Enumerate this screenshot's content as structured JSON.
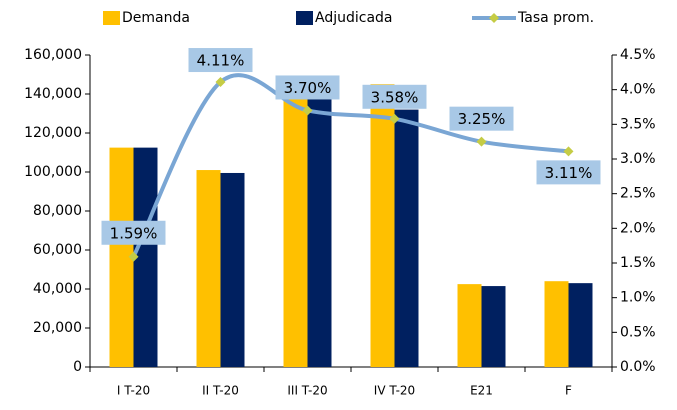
{
  "chart_data": {
    "type": "bar",
    "categories": [
      "I T-20",
      "II T-20",
      "III T-20",
      "IV T-20",
      "E21",
      "F"
    ],
    "series": [
      {
        "name": "Demanda",
        "type": "bar",
        "color": "#ffc000",
        "values": [
          112500,
          101000,
          141500,
          145000,
          42500,
          44000
        ]
      },
      {
        "name": "Adjudicada",
        "type": "bar",
        "color": "#002060",
        "values": [
          112500,
          99500,
          140500,
          132000,
          41500,
          43000
        ]
      },
      {
        "name": "Tasa prom.",
        "type": "line",
        "axis": "y2",
        "color": "#7aa6d4",
        "marker_color": "#c5cc45",
        "values": [
          1.59,
          4.11,
          3.7,
          3.58,
          3.25,
          3.11
        ],
        "value_labels": [
          "1.59%",
          "4.11%",
          "3.70%",
          "3.58%",
          "3.25%",
          "3.11%"
        ]
      }
    ],
    "ylim": [
      0,
      160000
    ],
    "yticks": [
      0,
      {
        "value": 20000,
        "label": "20,000"
      },
      {
        "value": 40000,
        "label": "40,000"
      },
      {
        "value": 60000,
        "label": "60,000"
      },
      {
        "value": 80000,
        "label": "80,000"
      },
      {
        "value": 100000,
        "label": "100,000"
      },
      {
        "value": 120000,
        "label": "120,000"
      },
      {
        "value": 140000,
        "label": "140,000"
      },
      {
        "value": 160000,
        "label": "160,000"
      }
    ],
    "y2lim": [
      0,
      4.5
    ],
    "y2ticks": [
      {
        "value": 0,
        "label": "0.0%"
      },
      {
        "value": 0.5,
        "label": "0.5%"
      },
      {
        "value": 1,
        "label": "1.0%"
      },
      {
        "value": 1.5,
        "label": "1.5%"
      },
      {
        "value": 2,
        "label": "2.0%"
      },
      {
        "value": 2.5,
        "label": "2.5%"
      },
      {
        "value": 3,
        "label": "3.0%"
      },
      {
        "value": 3.5,
        "label": "3.5%"
      },
      {
        "value": 4,
        "label": "4.0%"
      },
      {
        "value": 4.5,
        "label": "4.5%"
      }
    ],
    "legend": "top",
    "grid": false
  }
}
